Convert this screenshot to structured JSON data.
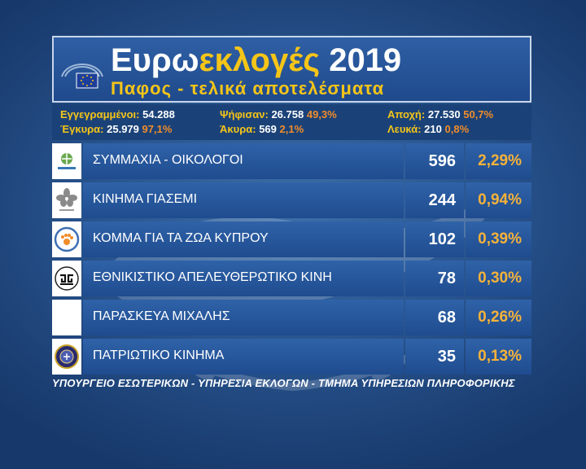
{
  "header": {
    "title_part1": "Ευρω",
    "title_part2": "εκλογές",
    "title_part3": " 2019",
    "subtitle": "Παφος - τελικά αποτελέσματα"
  },
  "stats": {
    "registered_label": "Εγγεγραμμένοι:",
    "registered_value": "54.288",
    "voted_label": "Ψήφισαν:",
    "voted_value": "26.758",
    "voted_pct": "49,3%",
    "abstention_label": "Αποχή:",
    "abstention_value": "27.530",
    "abstention_pct": "50,7%",
    "valid_label": "Έγκυρα:",
    "valid_value": "25.979",
    "valid_pct": "97,1%",
    "invalid_label": "Άκυρα:",
    "invalid_value": "569",
    "invalid_pct": "2,1%",
    "blank_label": "Λευκά:",
    "blank_value": "210",
    "blank_pct": "0,8%"
  },
  "results": [
    {
      "name": "ΣΥΜΜΑΧΙΑ - ΟΙΚΟΛΟΓΟΙ",
      "votes": "596",
      "pct": "2,29%",
      "logo_icon": "green-party-logo"
    },
    {
      "name": "ΚΙΝΗΜΑ ΓΙΑΣΕΜΙ",
      "votes": "244",
      "pct": "0,94%",
      "logo_icon": "jasmine-flower-logo"
    },
    {
      "name": "ΚΟΜΜΑ ΓΙΑ ΤΑ ΖΩΑ ΚΥΠΡΟΥ",
      "votes": "102",
      "pct": "0,39%",
      "logo_icon": "paw-circle-logo"
    },
    {
      "name": "ΕΘΝΙΚΙΣΤΙΚΟ ΑΠΕΛΕΥΘΕΡΩΤΙΚΟ ΚΙΝΗ",
      "votes": "78",
      "pct": "0,30%",
      "logo_icon": "greek-key-seal-logo"
    },
    {
      "name": "ΠΑΡΑΣΚΕΥΑ ΜΙΧΑΛΗΣ",
      "votes": "68",
      "pct": "0,26%",
      "logo_icon": "blank-logo"
    },
    {
      "name": "ΠΑΤΡΙΩΤΙΚΟ ΚΙΝΗΜΑ",
      "votes": "35",
      "pct": "0,13%",
      "logo_icon": "patriotic-seal-logo"
    }
  ],
  "footer": "ΥΠΟΥΡΓΕΙΟ ΕΣΩΤΕΡΙΚΩΝ - ΥΠΗΡΕΣΙΑ ΕΚΛΟΓΩΝ - ΤΜΗΜΑ ΥΠΗΡΕΣΙΩΝ ΠΛΗΡΟΦΟΡΙΚΗΣ",
  "colors": {
    "accent_yellow": "#f5c518",
    "accent_orange": "#f08c2a",
    "panel_blue": "#2f62a8"
  }
}
